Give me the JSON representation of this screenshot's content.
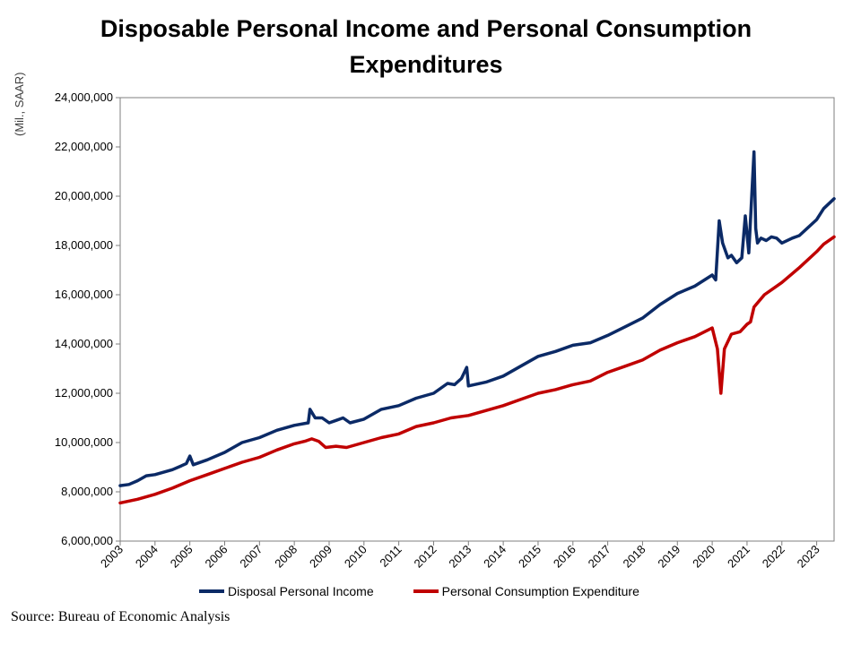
{
  "chart_data": {
    "type": "line",
    "title": "Disposable Personal Income and Personal Consumption Expenditures",
    "ylabel": "(Mil., SAAR)",
    "source": "Source: Bureau of Economic Analysis",
    "ylim": [
      6000000,
      24000000
    ],
    "y_ticks": [
      6000000,
      8000000,
      10000000,
      12000000,
      14000000,
      16000000,
      18000000,
      20000000,
      22000000,
      24000000
    ],
    "y_tick_labels": [
      "6,000,000",
      "8,000,000",
      "10,000,000",
      "12,000,000",
      "14,000,000",
      "16,000,000",
      "18,000,000",
      "20,000,000",
      "22,000,000",
      "24,000,000"
    ],
    "xlim": [
      2003.0,
      2023.5
    ],
    "x_ticks": [
      "2003",
      "2004",
      "2005",
      "2006",
      "2007",
      "2008",
      "2009",
      "2010",
      "2011",
      "2012",
      "2013",
      "2014",
      "2015",
      "2016",
      "2017",
      "2018",
      "2019",
      "2020",
      "2021",
      "2022",
      "2023"
    ],
    "grid": false,
    "legend_position": "bottom",
    "series": [
      {
        "name": "Disposal Personal Income",
        "color": "#0b2a66",
        "x": [
          2003.0,
          2003.25,
          2003.5,
          2003.75,
          2004.0,
          2004.5,
          2004.75,
          2004.9,
          2005.0,
          2005.1,
          2005.5,
          2006.0,
          2006.5,
          2007.0,
          2007.5,
          2008.0,
          2008.4,
          2008.45,
          2008.6,
          2008.8,
          2009.0,
          2009.2,
          2009.4,
          2009.6,
          2010.0,
          2010.5,
          2011.0,
          2011.5,
          2012.0,
          2012.4,
          2012.6,
          2012.8,
          2012.95,
          2013.0,
          2013.5,
          2014.0,
          2014.5,
          2015.0,
          2015.5,
          2016.0,
          2016.5,
          2017.0,
          2017.5,
          2018.0,
          2018.5,
          2019.0,
          2019.5,
          2020.0,
          2020.1,
          2020.2,
          2020.3,
          2020.45,
          2020.55,
          2020.7,
          2020.85,
          2020.95,
          2021.05,
          2021.2,
          2021.25,
          2021.3,
          2021.4,
          2021.55,
          2021.7,
          2021.85,
          2022.0,
          2022.3,
          2022.5,
          2023.0,
          2023.2,
          2023.5
        ],
        "values": [
          8250000,
          8300000,
          8450000,
          8650000,
          8700000,
          8900000,
          9050000,
          9150000,
          9450000,
          9100000,
          9300000,
          9600000,
          10000000,
          10200000,
          10500000,
          10700000,
          10800000,
          11350000,
          11000000,
          11000000,
          10800000,
          10900000,
          11000000,
          10800000,
          10950000,
          11350000,
          11500000,
          11800000,
          12000000,
          12400000,
          12350000,
          12600000,
          13050000,
          12300000,
          12450000,
          12700000,
          13100000,
          13500000,
          13700000,
          13950000,
          14050000,
          14350000,
          14700000,
          15050000,
          15600000,
          16050000,
          16350000,
          16800000,
          16600000,
          19000000,
          18100000,
          17500000,
          17600000,
          17300000,
          17500000,
          19200000,
          17700000,
          21800000,
          18700000,
          18100000,
          18300000,
          18200000,
          18350000,
          18300000,
          18100000,
          18300000,
          18400000,
          19050000,
          19500000,
          19900000
        ]
      },
      {
        "name": "Personal Consumption Expenditure",
        "color": "#c00000",
        "x": [
          2003.0,
          2003.5,
          2004.0,
          2004.5,
          2005.0,
          2005.5,
          2006.0,
          2006.5,
          2007.0,
          2007.5,
          2008.0,
          2008.3,
          2008.5,
          2008.7,
          2008.9,
          2009.2,
          2009.5,
          2010.0,
          2010.5,
          2011.0,
          2011.5,
          2012.0,
          2012.5,
          2013.0,
          2013.5,
          2014.0,
          2014.5,
          2015.0,
          2015.5,
          2016.0,
          2016.5,
          2017.0,
          2017.5,
          2018.0,
          2018.5,
          2019.0,
          2019.5,
          2020.0,
          2020.15,
          2020.25,
          2020.35,
          2020.55,
          2020.8,
          2021.0,
          2021.1,
          2021.2,
          2021.5,
          2021.8,
          2022.0,
          2022.5,
          2023.0,
          2023.2,
          2023.5
        ],
        "values": [
          7550000,
          7700000,
          7900000,
          8150000,
          8450000,
          8700000,
          8950000,
          9200000,
          9400000,
          9700000,
          9950000,
          10050000,
          10150000,
          10050000,
          9800000,
          9850000,
          9800000,
          10000000,
          10200000,
          10350000,
          10650000,
          10800000,
          11000000,
          11100000,
          11300000,
          11500000,
          11750000,
          12000000,
          12150000,
          12350000,
          12500000,
          12850000,
          13100000,
          13350000,
          13750000,
          14050000,
          14300000,
          14650000,
          13800000,
          12000000,
          13800000,
          14400000,
          14500000,
          14800000,
          14900000,
          15500000,
          16000000,
          16300000,
          16500000,
          17100000,
          17750000,
          18050000,
          18350000
        ]
      }
    ]
  }
}
